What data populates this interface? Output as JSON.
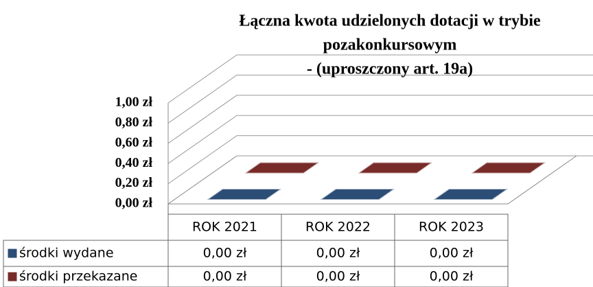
{
  "chart_data": {
    "type": "bar3d",
    "title": [
      "Łączna kwota udzielonych dotacji w trybie",
      "pozakonkursowym",
      "- (uproszczony art. 19a)"
    ],
    "categories": [
      "ROK 2021",
      "ROK 2022",
      "ROK 2023"
    ],
    "series": [
      {
        "name": "środki wydane",
        "color": "#2c4d75",
        "values": [
          0,
          0,
          0
        ],
        "value_labels": [
          "0,00 zł",
          "0,00 zł",
          "0,00 zł"
        ]
      },
      {
        "name": "środki przekazane",
        "color": "#772c2a",
        "values": [
          0,
          0,
          0
        ],
        "value_labels": [
          "0,00 zł",
          "0,00 zł",
          "0,00 zł"
        ]
      }
    ],
    "ylim": [
      0,
      1
    ],
    "yticks": [
      {
        "value": 0,
        "label": "0,00 zł"
      },
      {
        "value": 0.2,
        "label": "0,20 zł"
      },
      {
        "value": 0.4,
        "label": "0,40 zł"
      },
      {
        "value": 0.6,
        "label": "0,60 zł"
      },
      {
        "value": 0.8,
        "label": "0,80 zł"
      },
      {
        "value": 1,
        "label": "1,00 zł"
      }
    ],
    "grid": true
  }
}
